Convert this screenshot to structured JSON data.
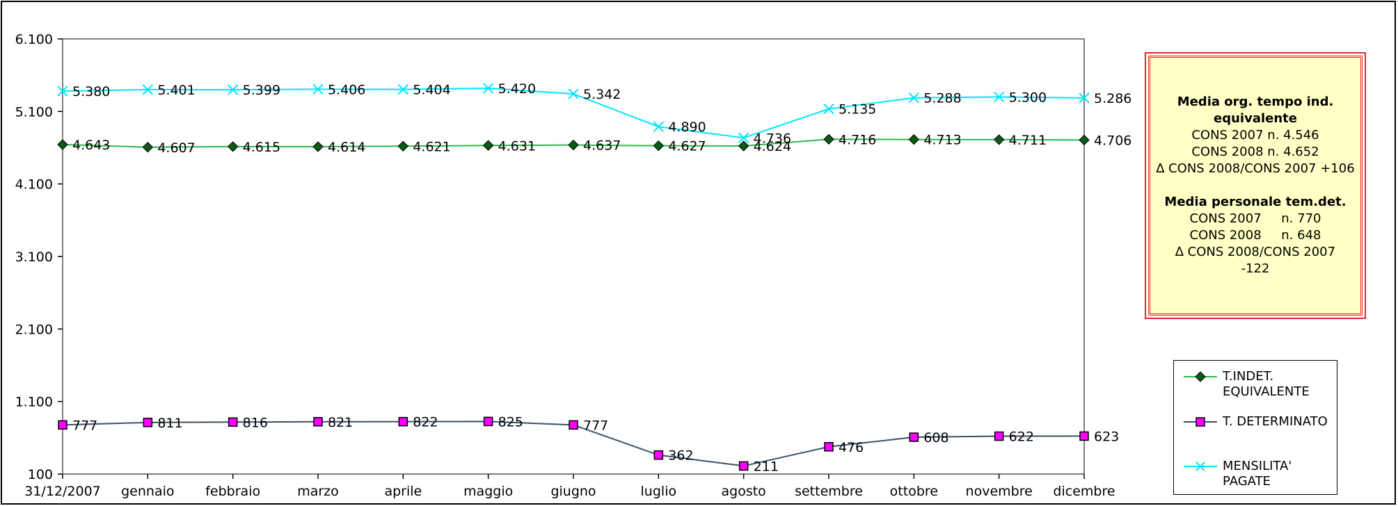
{
  "chart_data": {
    "type": "line",
    "title": "",
    "xlabel": "",
    "ylabel": "",
    "categories": [
      "31/12/2007",
      "gennaio",
      "febbraio",
      "marzo",
      "aprile",
      "maggio",
      "giugno",
      "luglio",
      "agosto",
      "settembre",
      "ottobre",
      "novembre",
      "dicembre"
    ],
    "ylim": [
      100,
      6100
    ],
    "yticks": [
      100,
      1100,
      2100,
      3100,
      4100,
      5100,
      6100
    ],
    "ytick_labels": [
      "100",
      "1.100",
      "2.100",
      "3.100",
      "4.100",
      "5.100",
      "6.100"
    ],
    "grid": false,
    "legend_position": "right",
    "series": [
      {
        "name": "T.INDET. EQUIVALENTE",
        "legend_lines": [
          "T.INDET.",
          "EQUIVALENTE"
        ],
        "color": "#2eb84a",
        "marker": "diamond",
        "marker_fill": "#0b5a16",
        "values": [
          4643,
          4607,
          4615,
          4614,
          4621,
          4631,
          4637,
          4627,
          4624,
          4716,
          4713,
          4711,
          4706
        ],
        "labels": [
          "4.643",
          "4.607",
          "4.615",
          "4.614",
          "4.621",
          "4.631",
          "4.637",
          "4.627",
          "4.624",
          "4.716",
          "4.713",
          "4.711",
          "4.706"
        ]
      },
      {
        "name": "T. DETERMINATO",
        "legend_lines": [
          "T. DETERMINATO"
        ],
        "color": "#3b4f6b",
        "marker": "square",
        "marker_fill": "#ff00ff",
        "values": [
          777,
          811,
          816,
          821,
          822,
          825,
          777,
          362,
          211,
          476,
          608,
          622,
          623
        ],
        "labels": [
          "777",
          "811",
          "816",
          "821",
          "822",
          "825",
          "777",
          "362",
          "211",
          "476",
          "608",
          "622",
          "623"
        ]
      },
      {
        "name": "MENSILITA' PAGATE",
        "legend_lines": [
          "MENSILITA'",
          "PAGATE"
        ],
        "color": "#00e5ff",
        "marker": "x",
        "marker_fill": "#00e5ff",
        "values": [
          5380,
          5401,
          5399,
          5406,
          5404,
          5420,
          5342,
          4890,
          4736,
          5135,
          5288,
          5300,
          5286
        ],
        "labels": [
          "5.380",
          "5.401",
          "5.399",
          "5.406",
          "5.404",
          "5.420",
          "5.342",
          "4.890",
          "4.736",
          "5.135",
          "5.288",
          "5.300",
          "5.286"
        ]
      }
    ],
    "annotation_box": {
      "title1": "Media org. tempo ind.",
      "title1b": "equivalente",
      "line1": "CONS 2007 n. 4.546",
      "line2": "CONS 2008 n. 4.652",
      "line3": "∆ CONS 2008/CONS 2007 +106",
      "title2": "Media personale tem.det.",
      "line4": "CONS 2007     n. 770",
      "line5": "CONS 2008     n. 648",
      "line6": "∆ CONS 2008/CONS 2007",
      "line7": "-122"
    }
  },
  "colors": {
    "axis": "#7f7f7f",
    "info_border": "#e0282a",
    "info_background": "#ffffc6"
  }
}
